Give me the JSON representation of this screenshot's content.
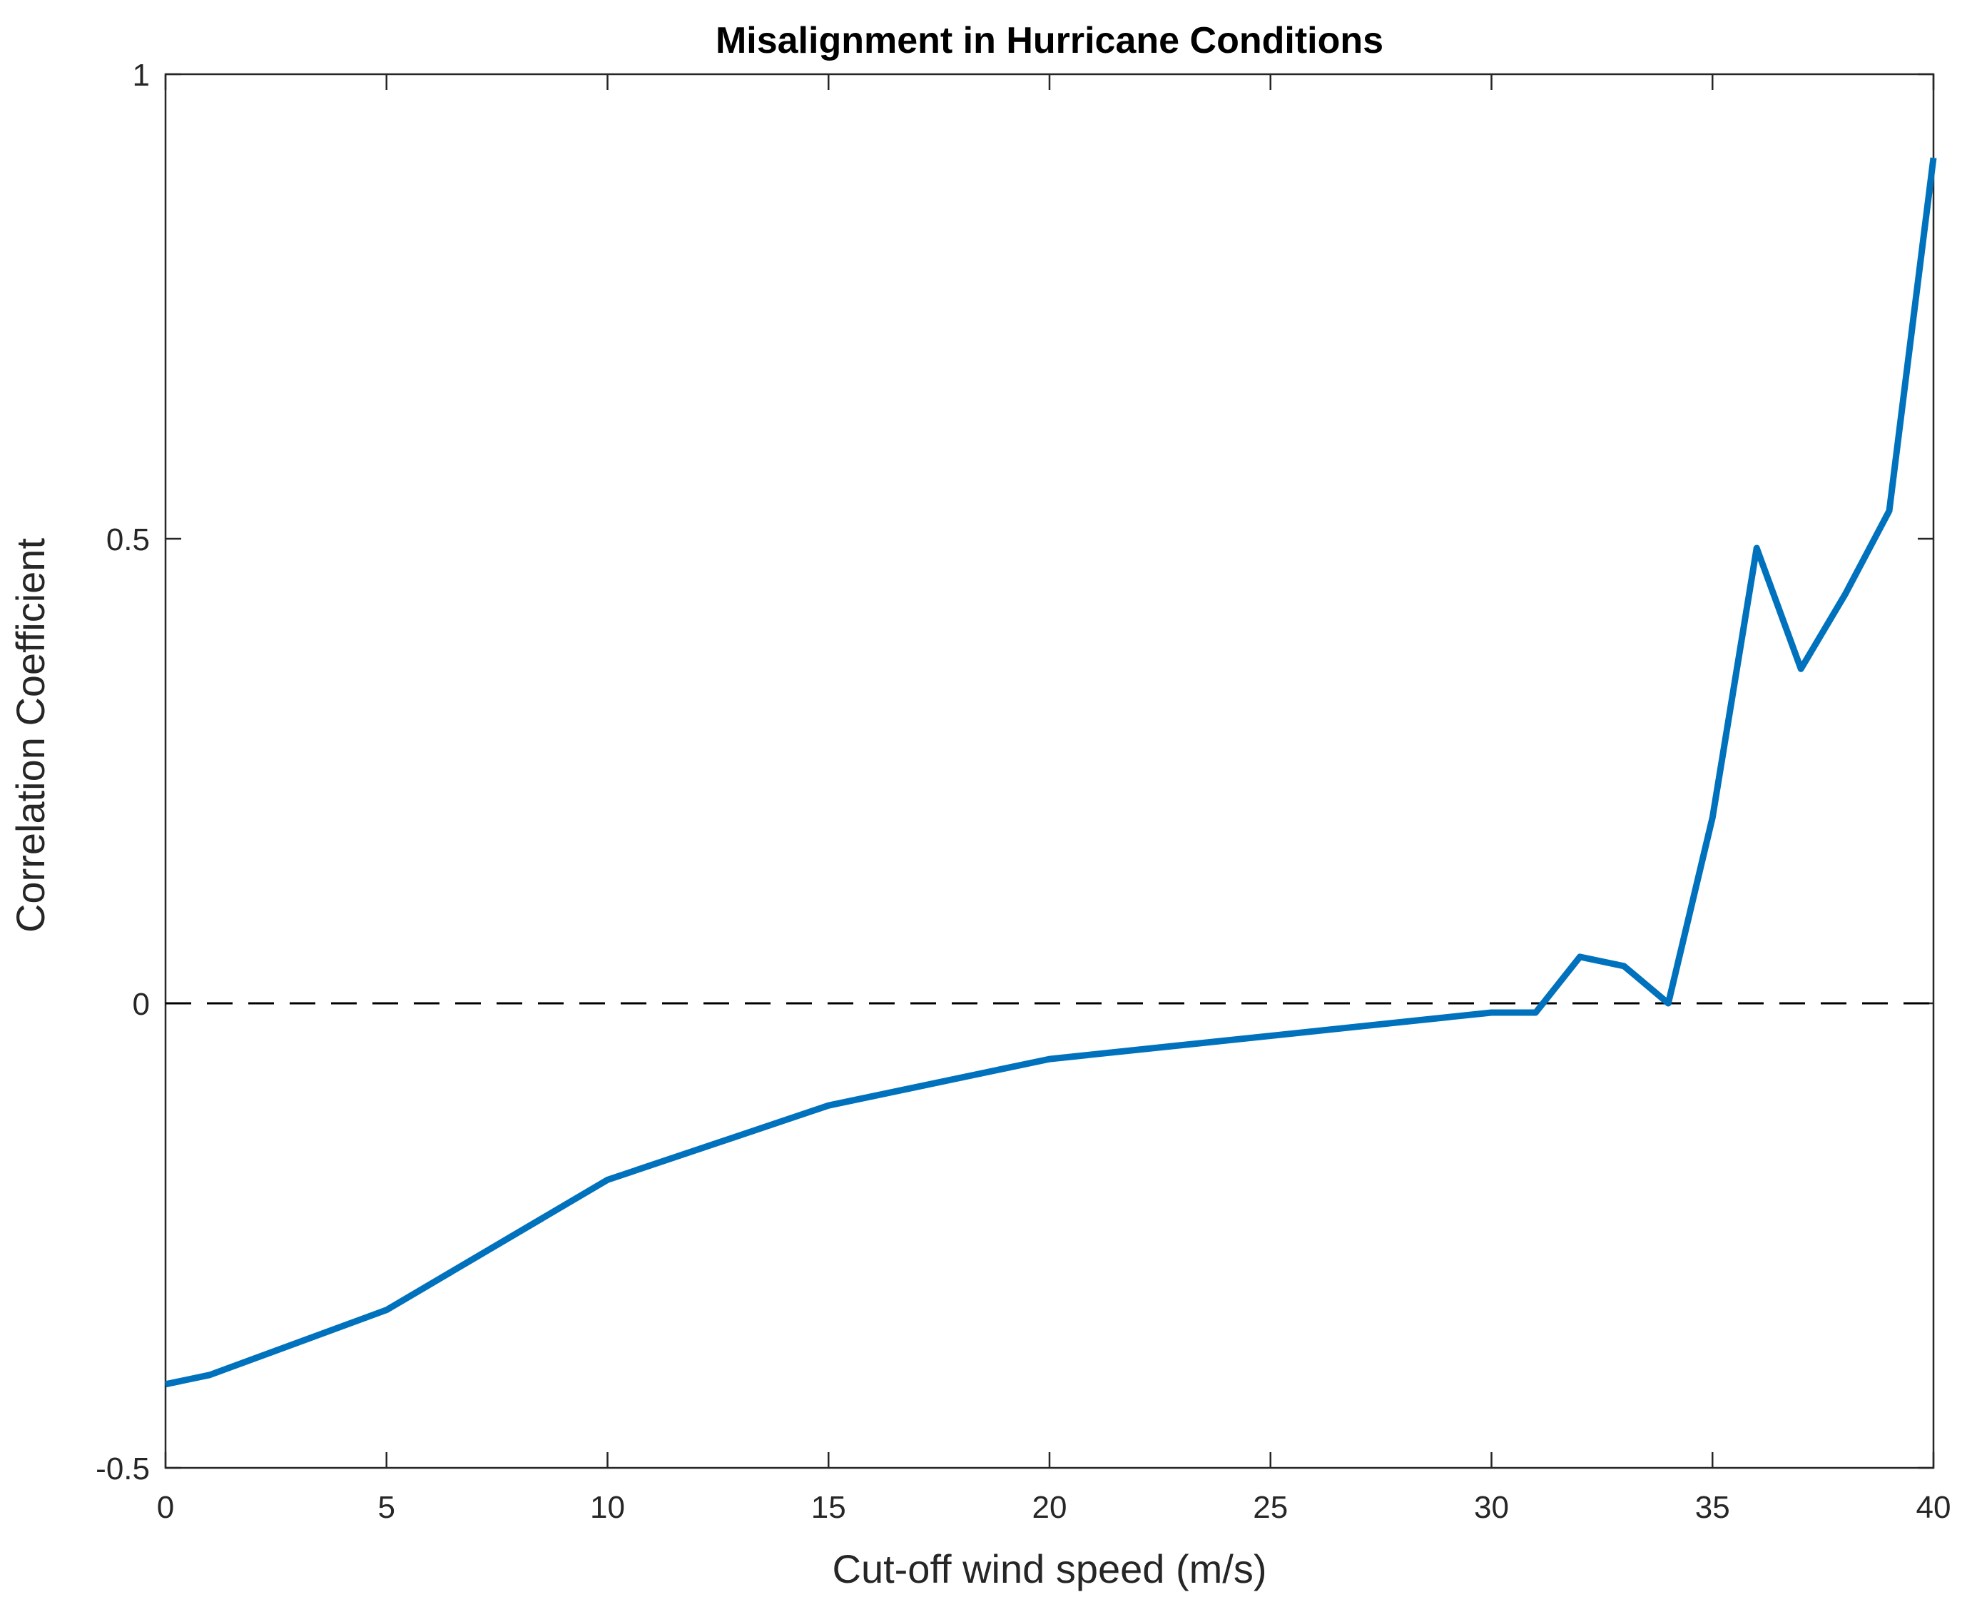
{
  "chart_data": {
    "type": "line",
    "title": "Misalignment in Hurricane Conditions",
    "xlabel": "Cut-off wind speed (m/s)",
    "ylabel": "Correlation Coefficient",
    "xlim": [
      0,
      40
    ],
    "ylim": [
      -0.5,
      1
    ],
    "xticks": [
      0,
      5,
      10,
      15,
      20,
      25,
      30,
      35,
      40
    ],
    "xtick_labels": [
      "0",
      "5",
      "10",
      "15",
      "20",
      "25",
      "30",
      "35",
      "40"
    ],
    "yticks": [
      -0.5,
      0,
      0.5,
      1
    ],
    "ytick_labels": [
      "-0.5",
      "0",
      "0.5",
      "1"
    ],
    "grid": false,
    "legend": "none",
    "reference_line": {
      "y": 0,
      "style": "dashed",
      "color": "#000000"
    },
    "series": [
      {
        "name": "Correlation Coefficient",
        "color": "#0072BD",
        "x": [
          0,
          1,
          5,
          10,
          15,
          20,
          30,
          31,
          32,
          33,
          34,
          35,
          36,
          37,
          38,
          39,
          40
        ],
        "y": [
          -0.41,
          -0.4,
          -0.33,
          -0.19,
          -0.11,
          -0.06,
          -0.01,
          -0.01,
          0.05,
          0.04,
          0.0,
          0.2,
          0.49,
          0.36,
          0.44,
          0.53,
          0.91
        ]
      }
    ]
  }
}
